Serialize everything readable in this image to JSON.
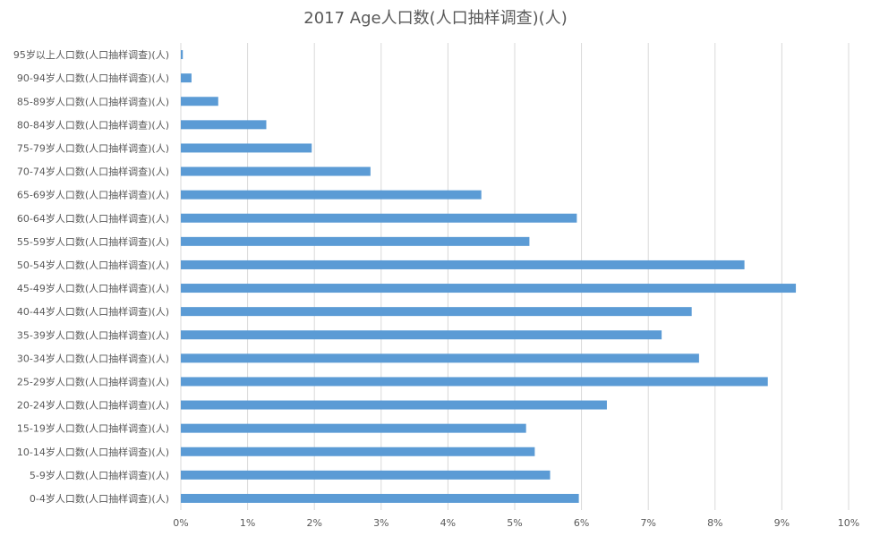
{
  "chart_data": {
    "type": "bar",
    "orientation": "horizontal",
    "title": "2017 Age人口数(人口抽样调查)(人)",
    "xlabel": "",
    "ylabel": "",
    "xlim": [
      0,
      10
    ],
    "unit": "%",
    "x_ticks": [
      "0%",
      "1%",
      "2%",
      "3%",
      "4%",
      "5%",
      "6%",
      "7%",
      "8%",
      "9%",
      "10%"
    ],
    "grid": "vertical",
    "legend": "none",
    "bar_color": "#5b9bd5",
    "categories": [
      "95岁以上人口数(人口抽样调查)(人)",
      "90-94岁人口数(人口抽样调查)(人)",
      "85-89岁人口数(人口抽样调查)(人)",
      "80-84岁人口数(人口抽样调查)(人)",
      "75-79岁人口数(人口抽样调查)(人)",
      "70-74岁人口数(人口抽样调查)(人)",
      "65-69岁人口数(人口抽样调查)(人)",
      "60-64岁人口数(人口抽样调查)(人)",
      "55-59岁人口数(人口抽样调查)(人)",
      "50-54岁人口数(人口抽样调查)(人)",
      "45-49岁人口数(人口抽样调查)(人)",
      "40-44岁人口数(人口抽样调查)(人)",
      "35-39岁人口数(人口抽样调查)(人)",
      "30-34岁人口数(人口抽样调查)(人)",
      "25-29岁人口数(人口抽样调查)(人)",
      "20-24岁人口数(人口抽样调查)(人)",
      "15-19岁人口数(人口抽样调查)(人)",
      "10-14岁人口数(人口抽样调查)(人)",
      "5-9岁人口数(人口抽样调查)(人)",
      "0-4岁人口数(人口抽样调查)(人)"
    ],
    "values": [
      0.03,
      0.16,
      0.56,
      1.28,
      1.96,
      2.84,
      4.5,
      5.93,
      5.22,
      8.44,
      9.21,
      7.65,
      7.2,
      7.76,
      8.79,
      6.38,
      5.17,
      5.3,
      5.53,
      5.96
    ]
  }
}
